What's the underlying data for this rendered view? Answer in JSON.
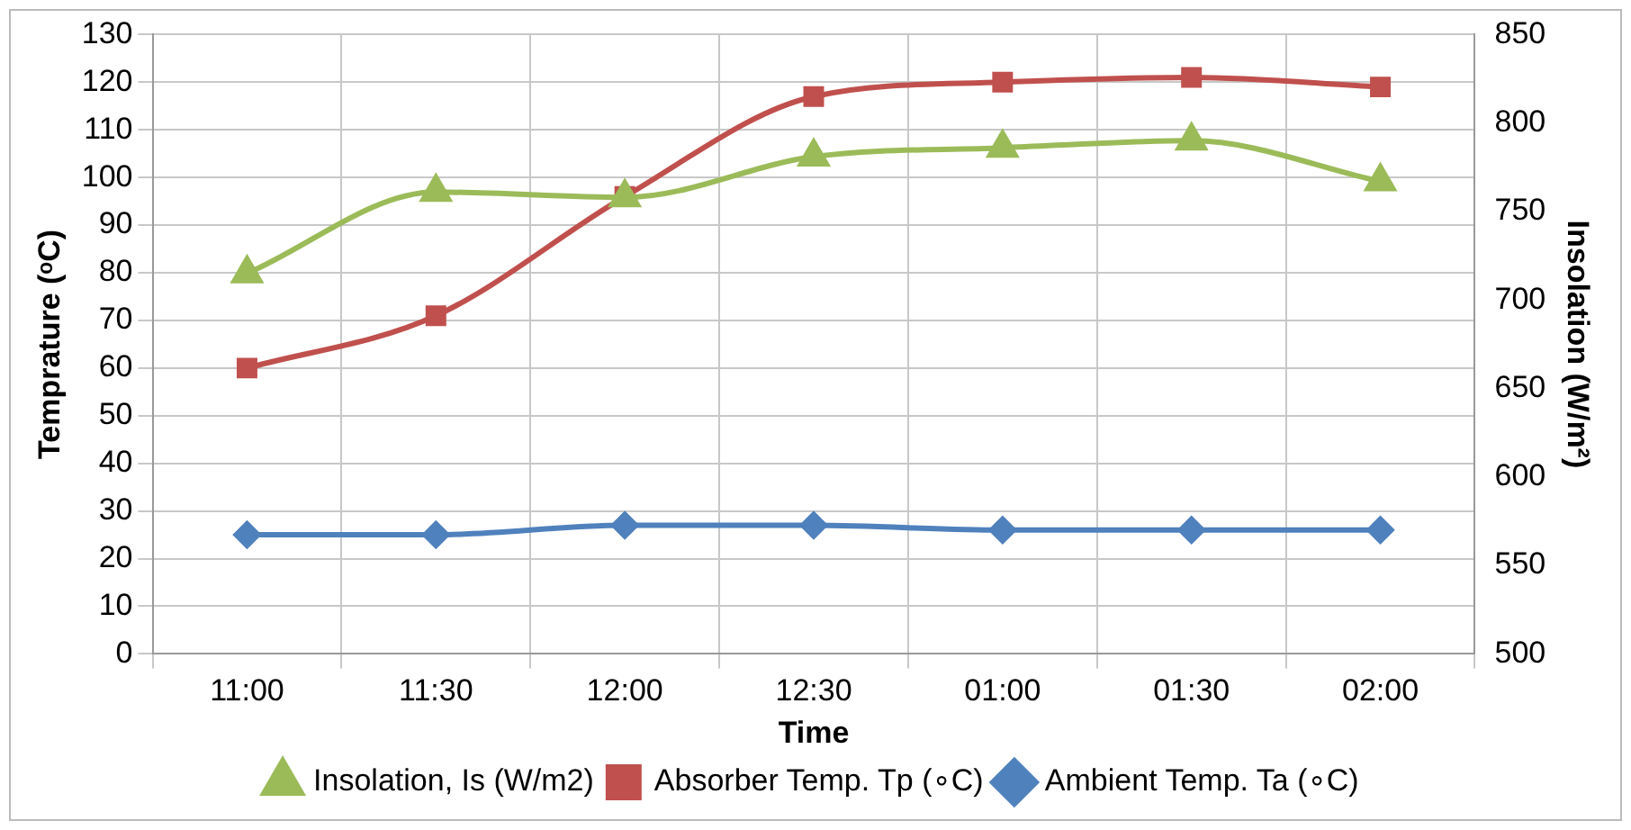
{
  "chart_data": {
    "type": "line",
    "xlabel": "Time",
    "ylabel": "Temprature (ᵒC)",
    "y2label": "Insolation (W/m²)",
    "categories": [
      "11:00",
      "11:30",
      "12:00",
      "12:30",
      "01:00",
      "01:30",
      "02:00"
    ],
    "series": [
      {
        "name": "Ambient Temp. Ta (∘C)",
        "color": "#4f81bd",
        "marker": "diamond",
        "values": [
          25,
          25,
          27,
          27,
          26,
          26,
          26
        ]
      },
      {
        "name": "Absorber Temp. Tp (∘C)",
        "color": "#c0504d",
        "marker": "square",
        "values": [
          60,
          71,
          96,
          117,
          120,
          121,
          119
        ]
      },
      {
        "name": "Insolation, Is (W/m2)",
        "color": "#9bbb59",
        "marker": "triangle",
        "axis": "y2",
        "values": [
          715,
          761,
          758,
          781,
          786,
          790,
          767
        ]
      }
    ],
    "ylim": [
      0,
      130
    ],
    "yticks": [
      0,
      10,
      20,
      30,
      40,
      50,
      60,
      70,
      80,
      90,
      100,
      110,
      120,
      130
    ],
    "y2lim": [
      500,
      850
    ],
    "y2ticks": [
      500,
      550,
      600,
      650,
      700,
      750,
      800,
      850
    ],
    "grid": true,
    "legend": "bottom"
  }
}
